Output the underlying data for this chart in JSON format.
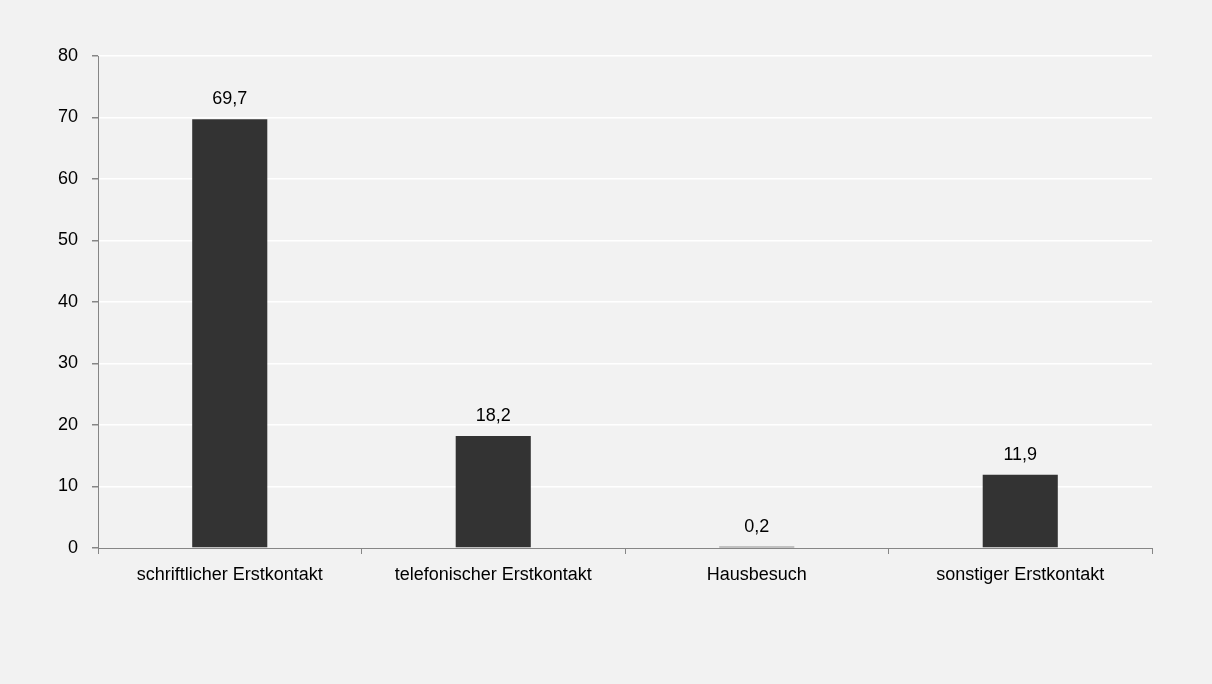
{
  "chart_data": {
    "type": "bar",
    "categories": [
      "schriftlicher Erstkontakt",
      "telefonischer Erstkontakt",
      "Hausbesuch",
      "sonstiger Erstkontakt"
    ],
    "values": [
      69.7,
      18.2,
      0.2,
      11.9
    ],
    "value_labels": [
      "69,7",
      "18,2",
      "0,2",
      "11,9"
    ],
    "color": "#333333",
    "ylim": [
      0,
      80
    ],
    "yticks": [
      0,
      10,
      20,
      30,
      40,
      50,
      60,
      70,
      80
    ],
    "grid": "y",
    "legend": false
  }
}
